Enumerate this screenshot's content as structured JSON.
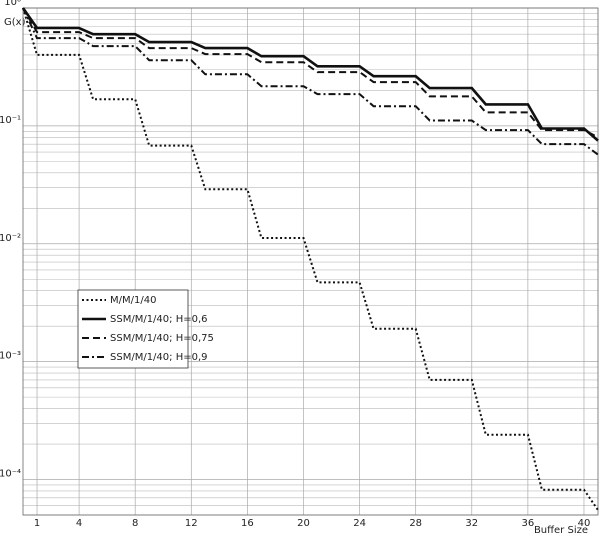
{
  "chart_data": {
    "type": "line",
    "y_label": "G(x)",
    "x_label": "Buffer Size",
    "x": [
      0,
      1,
      4,
      5,
      8,
      9,
      12,
      13,
      16,
      17,
      20,
      21,
      24,
      25,
      28,
      29,
      32,
      33,
      36,
      37,
      40,
      41
    ],
    "series": [
      {
        "name": "M/M/1/40",
        "color": "#111",
        "style": "dotted",
        "values": [
          1,
          0.4,
          0.4,
          0.168,
          0.168,
          0.068,
          0.068,
          0.029,
          0.029,
          0.0112,
          0.0112,
          0.0047,
          0.0047,
          0.0019,
          0.0019,
          0.0007,
          0.0007,
          0.00024,
          0.00024,
          8.2e-05,
          8.2e-05,
          5.5e-05
        ]
      },
      {
        "name": "SSM/M/1/40; H=0,6",
        "color": "#111",
        "style": "solid",
        "values": [
          1,
          0.676,
          0.676,
          0.6,
          0.6,
          0.514,
          0.514,
          0.457,
          0.457,
          0.39,
          0.39,
          0.32,
          0.32,
          0.264,
          0.264,
          0.209,
          0.209,
          0.152,
          0.152,
          0.095,
          0.095,
          0.075
        ]
      },
      {
        "name": "SSM/M/1/40; H=0,75",
        "color": "#111",
        "style": "dashed",
        "values": [
          1,
          0.625,
          0.625,
          0.555,
          0.555,
          0.457,
          0.457,
          0.406,
          0.406,
          0.347,
          0.347,
          0.286,
          0.286,
          0.235,
          0.235,
          0.178,
          0.178,
          0.13,
          0.13,
          0.092,
          0.092,
          0.08
        ]
      },
      {
        "name": "SSM/M/1/40; H=0,9",
        "color": "#111",
        "style": "dashdot",
        "values": [
          1,
          0.555,
          0.555,
          0.475,
          0.475,
          0.361,
          0.361,
          0.274,
          0.274,
          0.217,
          0.217,
          0.186,
          0.186,
          0.147,
          0.147,
          0.111,
          0.111,
          0.092,
          0.092,
          0.07,
          0.07,
          0.057
        ]
      }
    ],
    "xlim": [
      0,
      41
    ],
    "xticks": [
      1,
      4,
      8,
      12,
      16,
      20,
      24,
      28,
      32,
      36,
      40
    ],
    "ylim": [
      5e-05,
      1
    ],
    "log_y": true,
    "yticks": [
      {
        "value": 1,
        "label": "10⁰"
      },
      {
        "value": 0.1,
        "label": "10⁻¹"
      },
      {
        "value": 0.01,
        "label": "10⁻²"
      },
      {
        "value": 0.001,
        "label": "10⁻³"
      },
      {
        "value": 0.0001,
        "label": "10⁻⁴"
      }
    ],
    "grid": true,
    "minor_grid": true,
    "legend": "lower left"
  }
}
